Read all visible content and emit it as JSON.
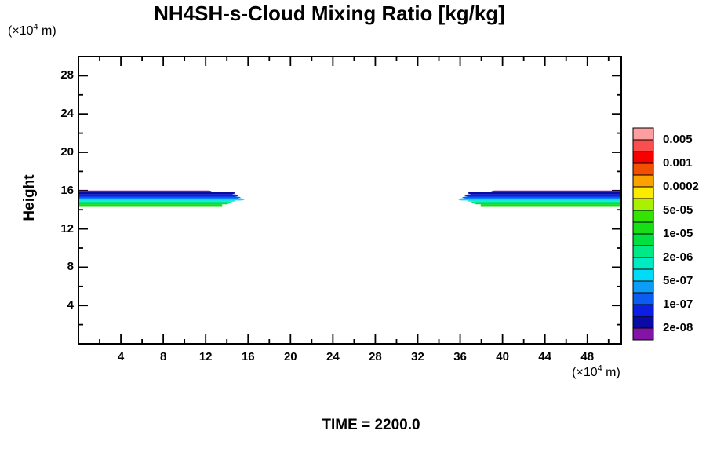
{
  "title": "NH4SH-s-Cloud Mixing Ratio [kg/kg]",
  "time_label": "TIME = 2200.0",
  "y_axis": {
    "label": "Height",
    "unit_prefix": "(×10",
    "unit_exp": "4",
    "unit_suffix": " m)"
  },
  "x_axis": {
    "unit_prefix": "(×10",
    "unit_exp": "4",
    "unit_suffix": " m)"
  },
  "chart_data": {
    "type": "heatmap",
    "subtype": "filled-contour",
    "title": "NH4SH-s-Cloud Mixing Ratio [kg/kg]",
    "xlabel": "(×10^4 m)",
    "ylabel": "Height (×10^4 m)",
    "xlim": [
      0,
      51.2
    ],
    "ylim": [
      0,
      30
    ],
    "grid": false,
    "x_major_ticks": [
      4,
      8,
      12,
      16,
      20,
      24,
      28,
      32,
      36,
      40,
      44,
      48
    ],
    "x_major_tick_labels": [
      "4",
      "8",
      "12",
      "16",
      "20",
      "24",
      "28",
      "32",
      "36",
      "40",
      "44",
      "48"
    ],
    "x_minor_step": 2,
    "y_major_ticks": [
      4,
      8,
      12,
      16,
      20,
      24,
      28
    ],
    "y_major_tick_labels": [
      "4",
      "8",
      "12",
      "16",
      "20",
      "24",
      "28"
    ],
    "y_minor_step": 2,
    "time": "2200.0",
    "colorbar": {
      "position": "right",
      "labels_top_to_bottom": [
        "0.005",
        "0.001",
        "0.0002",
        "5e-05",
        "1e-05",
        "2e-06",
        "5e-07",
        "1e-07",
        "2e-08"
      ],
      "label_every_n_cells": 2,
      "colors_top_to_bottom": [
        "#FF9E9E",
        "#FB4F4F",
        "#F70000",
        "#F25000",
        "#FBA200",
        "#FBEB00",
        "#A9F100",
        "#35E300",
        "#16DF16",
        "#00E141",
        "#00E986",
        "#00EAC4",
        "#00DCF8",
        "#0B9DF8",
        "#0B5DF2",
        "#0B1EE2",
        "#0A0AA5",
        "#8414A6"
      ]
    },
    "bands": [
      {
        "name": "left-cloud-band",
        "x_range": [
          0.0,
          16.0
        ],
        "height_range": [
          14.3,
          16.0
        ],
        "tip": "right"
      },
      {
        "name": "right-cloud-band",
        "x_range": [
          35.5,
          51.2
        ],
        "height_range": [
          14.3,
          16.0
        ],
        "tip": "left"
      }
    ],
    "band_layers_top_to_bottom": [
      {
        "color": "#8414A6",
        "h": 1.5,
        "ext": -18
      },
      {
        "color": "#0A0AA5",
        "h": 3.5,
        "ext": 12
      },
      {
        "color": "#0B1EE2",
        "h": 3.0,
        "ext": 16
      },
      {
        "color": "#0B5DF2",
        "h": 2.0,
        "ext": 19
      },
      {
        "color": "#0B9DF8",
        "h": 1.5,
        "ext": 22
      },
      {
        "color": "#00DCF8",
        "h": 1.5,
        "ext": 24
      },
      {
        "color": "#00EAC4",
        "h": 1.5,
        "ext": 13
      },
      {
        "color": "#00E986",
        "h": 1.5,
        "ext": 8
      },
      {
        "color": "#00E141",
        "h": 2.0,
        "ext": 4
      },
      {
        "color": "#16DF16",
        "h": 3.5,
        "ext": 1,
        "notch": true
      }
    ]
  }
}
